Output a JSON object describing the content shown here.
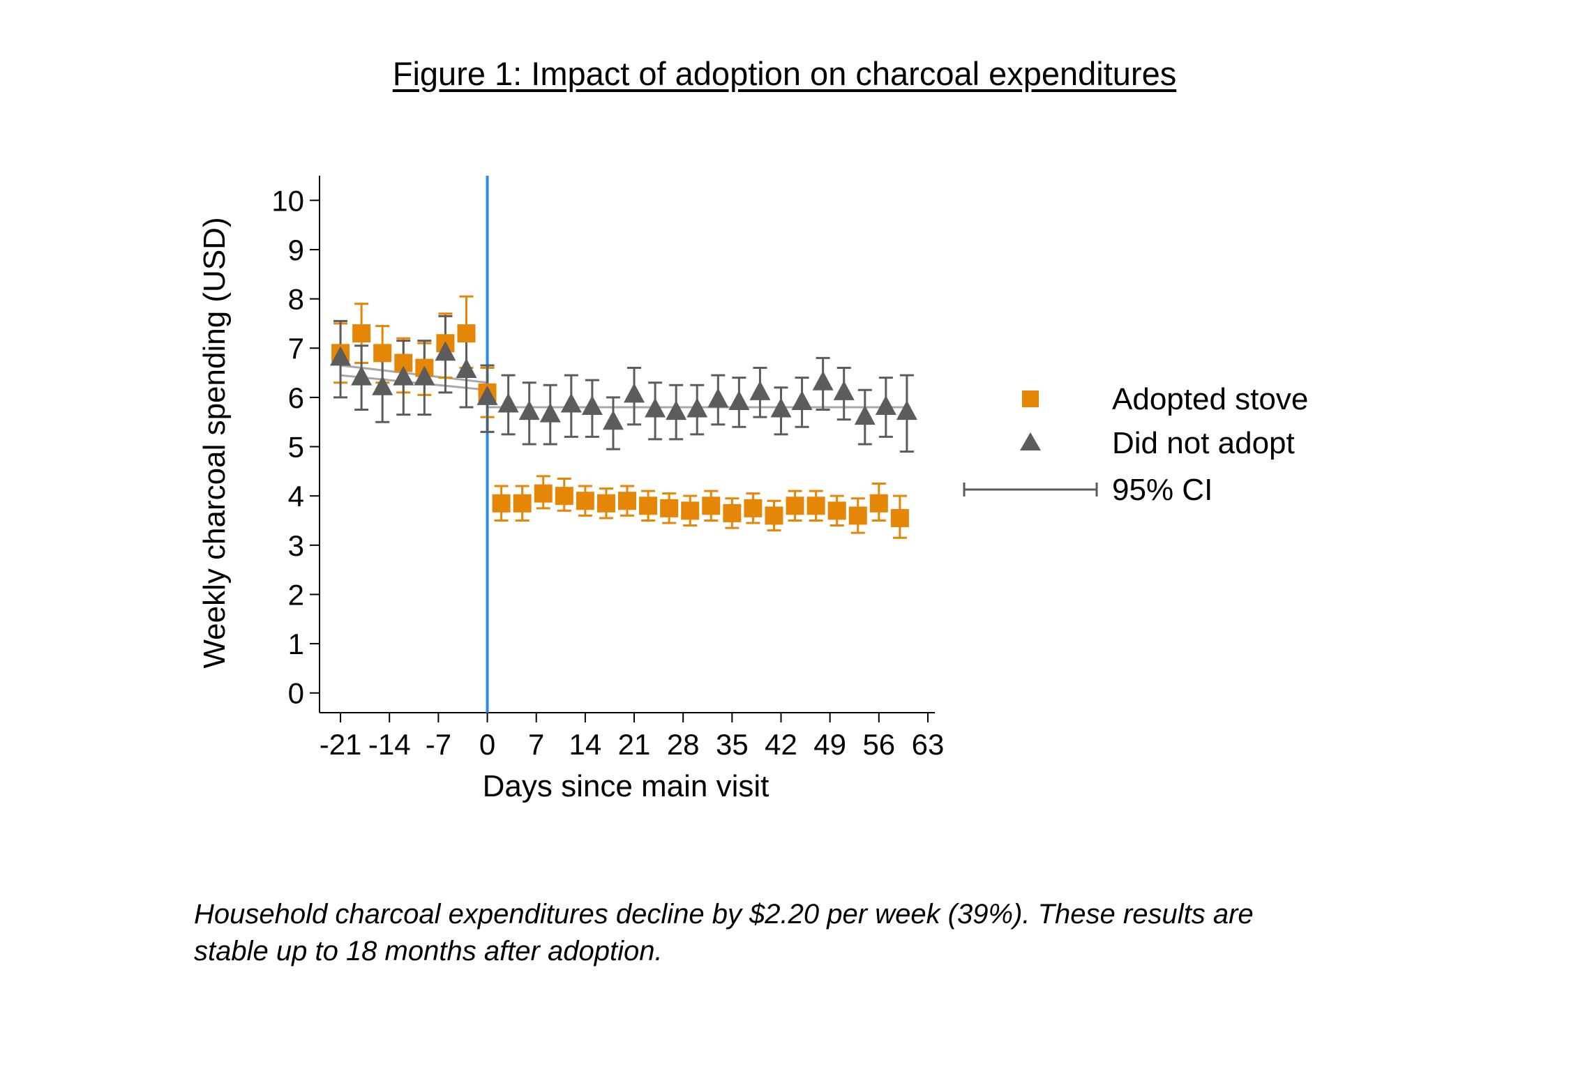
{
  "chart_data": {
    "type": "scatter",
    "title": "Figure 1: Impact of adoption on charcoal expenditures",
    "xlabel": "Days since main visit",
    "ylabel": "Weekly charcoal spending (USD)",
    "xlim": [
      -24,
      64
    ],
    "ylim": [
      -0.4,
      10.5
    ],
    "x_ticks": [
      -21,
      -14,
      -7,
      0,
      7,
      14,
      21,
      28,
      35,
      42,
      49,
      56,
      63
    ],
    "x_tick_labels": [
      "-21",
      "-14",
      "-7",
      "0",
      "7",
      "14",
      "21",
      "28",
      "35",
      "42",
      "49",
      "56",
      "63"
    ],
    "y_ticks": [
      0,
      1,
      2,
      3,
      4,
      5,
      6,
      7,
      8,
      9,
      10
    ],
    "y_tick_labels": [
      "0",
      "1",
      "2",
      "3",
      "4",
      "5",
      "6",
      "7",
      "8",
      "9",
      "10"
    ],
    "reference_line": {
      "x": 0,
      "color": "#2b8ae6"
    },
    "series": [
      {
        "name": "Adopted stove",
        "marker": "square",
        "color": "#e58606",
        "x": [
          -21,
          -18,
          -15,
          -12,
          -9,
          -6,
          -3,
          0,
          2,
          5,
          8,
          11,
          14,
          17,
          20,
          23,
          26,
          29,
          32,
          35,
          38,
          41,
          44,
          47,
          50,
          53,
          56,
          59
        ],
        "y": [
          6.9,
          7.3,
          6.9,
          6.7,
          6.6,
          7.1,
          7.3,
          6.1,
          3.85,
          3.85,
          4.05,
          4.0,
          3.9,
          3.85,
          3.9,
          3.8,
          3.75,
          3.7,
          3.8,
          3.65,
          3.75,
          3.6,
          3.8,
          3.8,
          3.7,
          3.6,
          3.85,
          3.55
        ],
        "lower": [
          6.3,
          6.7,
          6.3,
          6.1,
          6.05,
          6.4,
          6.6,
          5.6,
          3.5,
          3.5,
          3.75,
          3.7,
          3.6,
          3.55,
          3.6,
          3.5,
          3.45,
          3.4,
          3.5,
          3.35,
          3.45,
          3.3,
          3.5,
          3.5,
          3.4,
          3.25,
          3.5,
          3.15
        ],
        "upper": [
          7.5,
          7.9,
          7.45,
          7.2,
          7.1,
          7.7,
          8.05,
          6.6,
          4.2,
          4.2,
          4.4,
          4.35,
          4.2,
          4.15,
          4.2,
          4.1,
          4.05,
          4.0,
          4.1,
          3.95,
          4.05,
          3.9,
          4.1,
          4.1,
          4.0,
          3.95,
          4.25,
          4.0
        ]
      },
      {
        "name": "Did not adopt",
        "marker": "triangle",
        "color": "#5c5c5c",
        "x": [
          -21,
          -18,
          -15,
          -12,
          -9,
          -6,
          -3,
          0,
          3,
          6,
          9,
          12,
          15,
          18,
          21,
          24,
          27,
          30,
          33,
          36,
          39,
          42,
          45,
          48,
          51,
          54,
          57,
          60
        ],
        "y": [
          6.8,
          6.4,
          6.2,
          6.4,
          6.4,
          6.9,
          6.55,
          6.0,
          5.85,
          5.7,
          5.65,
          5.85,
          5.8,
          5.5,
          6.05,
          5.75,
          5.7,
          5.75,
          5.95,
          5.9,
          6.1,
          5.75,
          5.9,
          6.3,
          6.1,
          5.6,
          5.8,
          5.7
        ],
        "lower": [
          6.0,
          5.75,
          5.5,
          5.65,
          5.65,
          6.1,
          5.8,
          5.3,
          5.25,
          5.05,
          5.05,
          5.2,
          5.2,
          4.95,
          5.45,
          5.15,
          5.15,
          5.25,
          5.45,
          5.4,
          5.6,
          5.25,
          5.4,
          5.75,
          5.55,
          5.05,
          5.2,
          4.9
        ],
        "upper": [
          7.55,
          7.05,
          6.95,
          7.15,
          7.15,
          7.65,
          7.3,
          6.65,
          6.45,
          6.3,
          6.25,
          6.45,
          6.35,
          6.0,
          6.6,
          6.3,
          6.25,
          6.25,
          6.45,
          6.4,
          6.6,
          6.2,
          6.4,
          6.8,
          6.6,
          6.15,
          6.4,
          6.45
        ]
      }
    ],
    "fit_lines": [
      {
        "series": "Adopted stove",
        "x": [
          -21,
          0
        ],
        "y": [
          6.65,
          6.3
        ]
      },
      {
        "series": "Did not adopt",
        "x": [
          -21,
          0
        ],
        "y": [
          6.45,
          6.15
        ]
      },
      {
        "series": "Did not adopt",
        "x": [
          0,
          60
        ],
        "y": [
          5.8,
          5.8
        ]
      }
    ],
    "legend": {
      "position": "right",
      "entries": [
        "Adopted stove",
        "Did not adopt",
        "95% CI"
      ]
    },
    "colors": {
      "adopted": "#e58606",
      "not_adopted": "#5c5c5c",
      "ci": "#5c5c5c",
      "fit": "#a8a8a8",
      "vline": "#2b8ae6"
    }
  },
  "caption": {
    "line1": "Household charcoal expenditures decline by $2.20 per week (39%). These results are",
    "line2": "stable up to 18 months after adoption."
  }
}
